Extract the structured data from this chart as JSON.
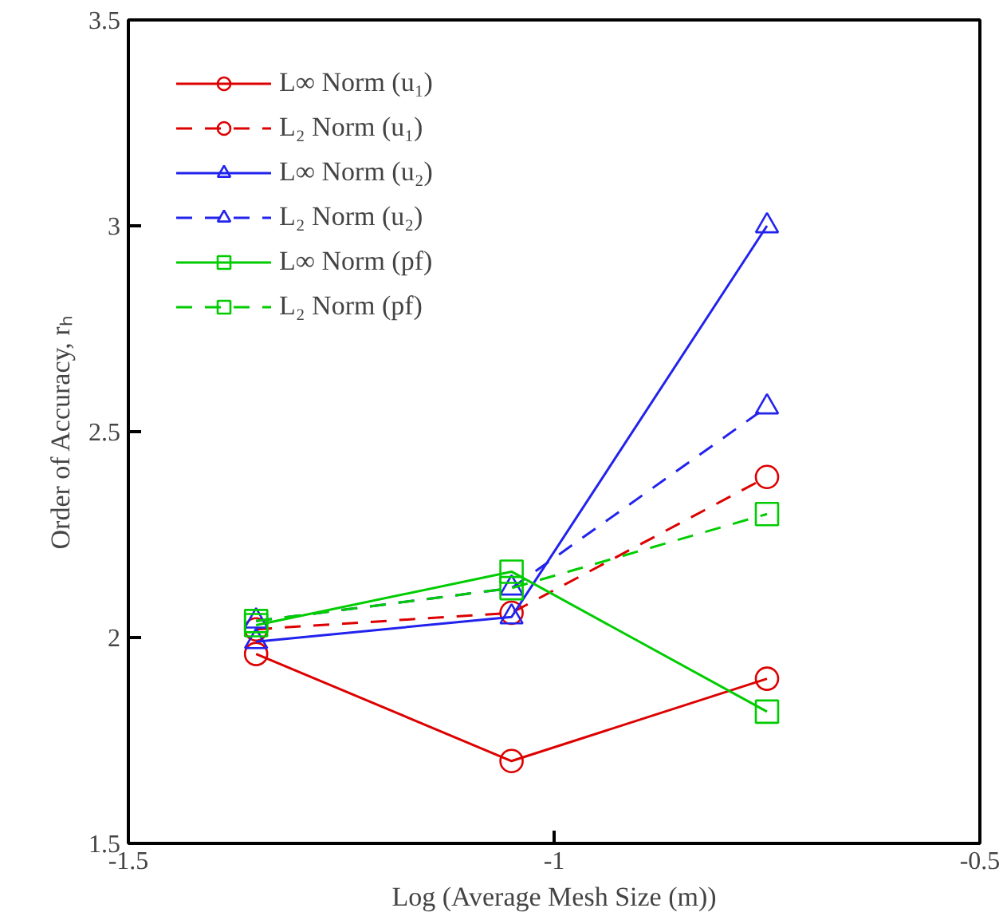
{
  "chart_data": {
    "type": "line",
    "xlabel": "Log (Average Mesh Size (m))",
    "ylabel": "Order of Accuracy, rₕ",
    "x": [
      -1.35,
      -1.05,
      -0.75
    ],
    "xlim": [
      -1.5,
      -0.5
    ],
    "xticks": [
      -1.5,
      -1,
      -0.5
    ],
    "ylim": [
      1.5,
      3.5
    ],
    "yticks": [
      1.5,
      2,
      2.5,
      3,
      3.5
    ],
    "grid": false,
    "legend": "top left",
    "series": [
      {
        "name": "L∞ Norm (u₁)",
        "color": "#dd0000",
        "marker": "circle",
        "line_style": "solid",
        "values": [
          1.96,
          1.7,
          1.9
        ]
      },
      {
        "name": "L₂ Norm (u₁)",
        "color": "#dd0000",
        "marker": "circle",
        "line_style": "dashed",
        "values": [
          2.02,
          2.06,
          2.39
        ]
      },
      {
        "name": "L∞ Norm (u₂)",
        "color": "#2222ee",
        "marker": "triangle",
        "line_style": "solid",
        "values": [
          1.99,
          2.05,
          3.0
        ]
      },
      {
        "name": "L₂ Norm (u₂)",
        "color": "#2222ee",
        "marker": "triangle",
        "line_style": "dashed",
        "values": [
          2.04,
          2.12,
          2.56
        ]
      },
      {
        "name": "L∞ Norm (pf)",
        "color": "#00cc00",
        "marker": "square",
        "line_style": "solid",
        "values": [
          2.03,
          2.16,
          1.82
        ]
      },
      {
        "name": "L₂ Norm (pf)",
        "color": "#00cc00",
        "marker": "square",
        "line_style": "dashed",
        "values": [
          2.04,
          2.12,
          2.3
        ]
      }
    ]
  }
}
